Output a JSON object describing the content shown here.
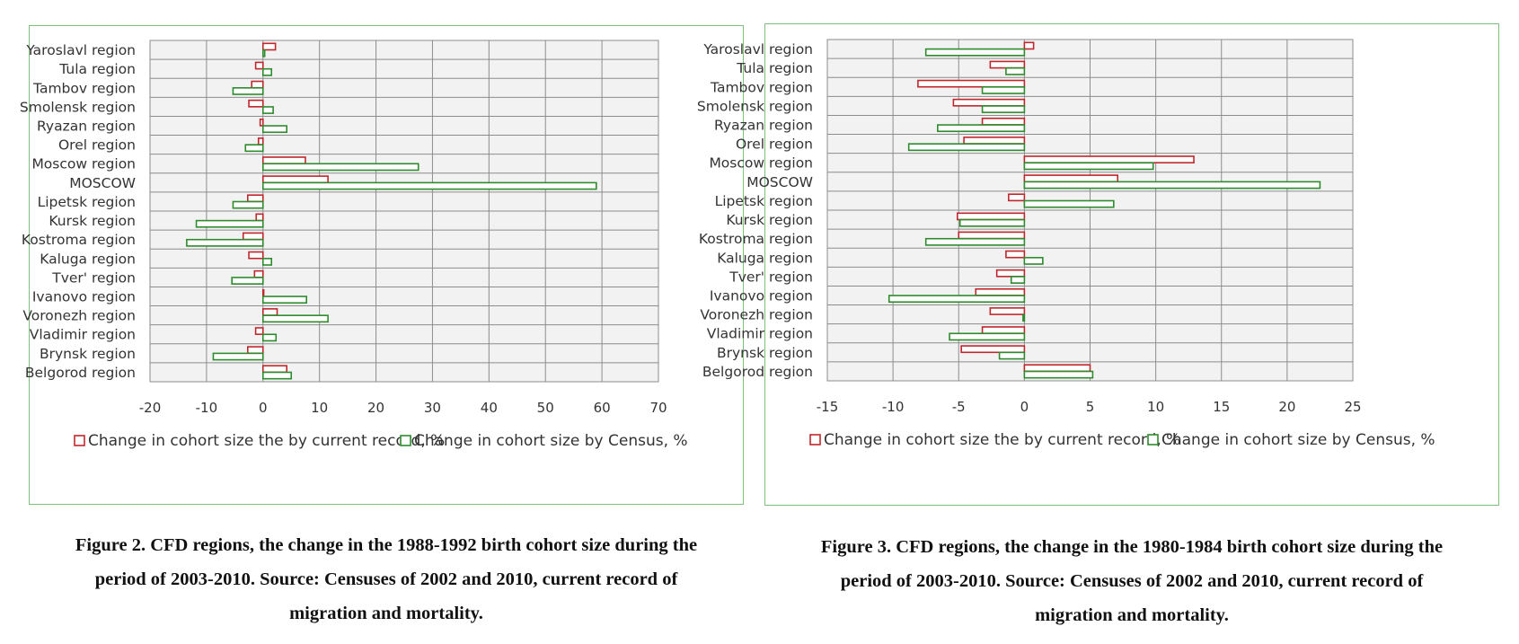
{
  "colors": {
    "current_record": "#c0272d",
    "census": "#2e8b2e",
    "plot_bg": "#f2f2f2",
    "grid": "#8c8c8c",
    "frame": "#7fbf7f"
  },
  "chart_data": [
    {
      "type": "bar",
      "orientation": "horizontal",
      "categories": [
        "Yaroslavl region",
        "Tula region",
        "Tambov region",
        "Smolensk region",
        "Ryazan region",
        "Orel region",
        "Moscow region",
        "MOSCOW",
        "Lipetsk region",
        "Kursk region",
        "Kostroma region",
        "Kaluga region",
        "Tver' region",
        "Ivanovo region",
        "Voronezh region",
        "Vladimir region",
        "Brynsk region",
        "Belgorod region"
      ],
      "series": [
        {
          "name": "Change in cohort size the by current record, %",
          "values": [
            2.2,
            -1.3,
            -2.0,
            -2.5,
            -0.5,
            -0.8,
            7.5,
            11.5,
            -2.7,
            -1.2,
            -3.5,
            -2.5,
            -1.5,
            0.0,
            2.5,
            -1.3,
            -2.7,
            4.2
          ]
        },
        {
          "name": "Change in cohort size by Census, %",
          "values": [
            0.3,
            1.5,
            -5.3,
            1.8,
            4.2,
            -3.1,
            27.5,
            59.0,
            -5.3,
            -11.8,
            -13.5,
            1.5,
            -5.5,
            7.7,
            11.5,
            2.3,
            -8.8,
            5.0
          ]
        }
      ],
      "xlim": [
        -20,
        70
      ],
      "xticks": [
        -20,
        -10,
        0,
        10,
        20,
        30,
        40,
        50,
        60,
        70
      ],
      "grid": true,
      "legend_position": "bottom",
      "title": "",
      "xlabel": "",
      "ylabel": ""
    },
    {
      "type": "bar",
      "orientation": "horizontal",
      "categories": [
        "Yaroslavl region",
        "Tula region",
        "Tambov region",
        "Smolensk region",
        "Ryazan region",
        "Orel region",
        "Moscow region",
        "MOSCOW",
        "Lipetsk region",
        "Kursk region",
        "Kostroma region",
        "Kaluga region",
        "Tver' region",
        "Ivanovo region",
        "Voronezh region",
        "Vladimir region",
        "Brynsk region",
        "Belgorod region"
      ],
      "series": [
        {
          "name": "Change in cohort size the by current record, %",
          "values": [
            0.7,
            -2.6,
            -8.1,
            -5.4,
            -3.2,
            -4.6,
            12.9,
            7.1,
            -1.2,
            -5.1,
            -5.0,
            -1.4,
            -2.1,
            -3.7,
            -2.6,
            -3.2,
            -4.8,
            5.0
          ]
        },
        {
          "name": "Change in cohort size by Census, %",
          "values": [
            -7.5,
            -1.4,
            -3.2,
            -3.2,
            -6.6,
            -8.8,
            9.8,
            22.5,
            6.8,
            -4.9,
            -7.5,
            1.4,
            -1.0,
            -10.3,
            -0.1,
            -5.7,
            -1.9,
            5.2
          ]
        }
      ],
      "xlim": [
        -15,
        25
      ],
      "xticks": [
        -15,
        -10,
        -5,
        0,
        5,
        10,
        15,
        20,
        25
      ],
      "grid": true,
      "legend_position": "bottom",
      "title": "",
      "xlabel": "",
      "ylabel": ""
    }
  ],
  "captions": [
    {
      "lines": [
        "Figure 2. CFD regions, the change in the 1988-1992 birth cohort size during the",
        "period of 2003-2010. Source: Censuses of 2002 and 2010, current record of",
        "migration and mortality."
      ]
    },
    {
      "lines": [
        "Figure 3. CFD regions, the change in the 1980-1984 birth cohort size during the",
        "period of 2003-2010. Source: Censuses of 2002 and 2010, current record of",
        "migration and mortality."
      ]
    }
  ]
}
